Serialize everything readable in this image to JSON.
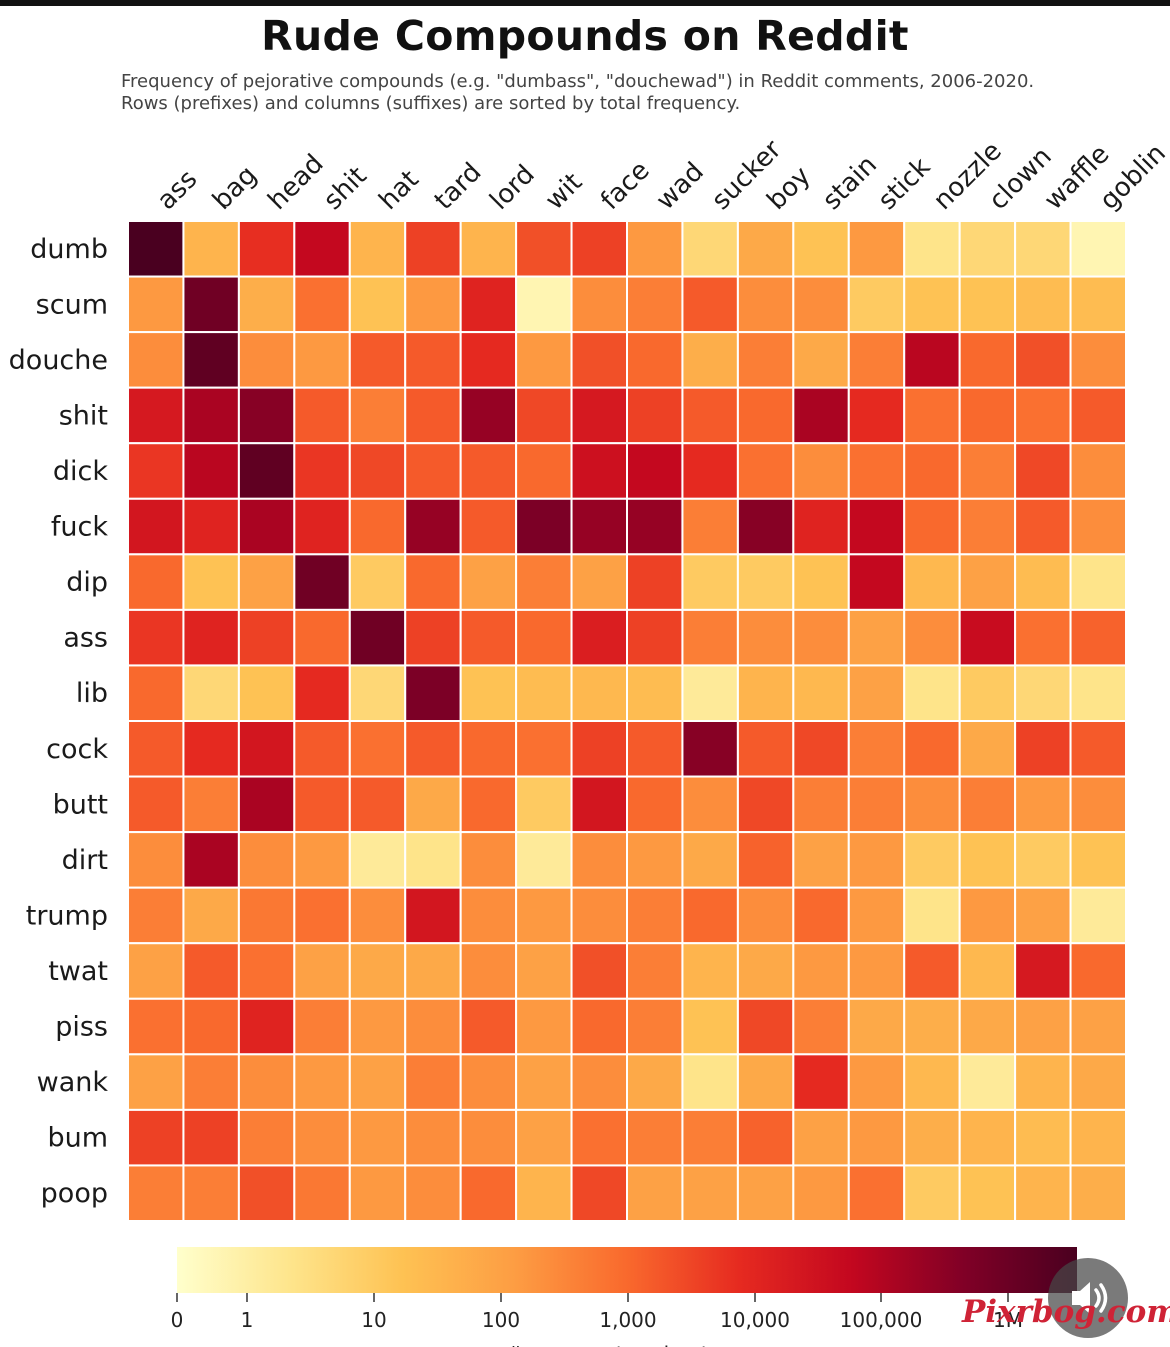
{
  "chart_data": {
    "type": "heatmap",
    "title": "Rude Compounds on Reddit",
    "subtitle": [
      "Frequency of pejorative compounds (e.g. \"dumbass\", \"douchewad\") in Reddit comments, 2006-2020.",
      "Rows (prefixes) and columns (suffixes) are sorted by total frequency."
    ],
    "columns": [
      "ass",
      "bag",
      "head",
      "shit",
      "hat",
      "tard",
      "lord",
      "wit",
      "face",
      "wad",
      "sucker",
      "boy",
      "stain",
      "stick",
      "nozzle",
      "clown",
      "waffle",
      "goblin"
    ],
    "rows": [
      "dumb",
      "scum",
      "douche",
      "shit",
      "dick",
      "fuck",
      "dip",
      "ass",
      "lib",
      "cock",
      "butt",
      "dirt",
      "trump",
      "twat",
      "piss",
      "wank",
      "bum",
      "poop"
    ],
    "values": [
      [
        1000000,
        60,
        5000,
        30000,
        60,
        3000,
        60,
        2000,
        3000,
        200,
        10,
        100,
        30,
        200,
        5,
        10,
        10,
        1
      ],
      [
        200,
        300000,
        80,
        800,
        30,
        200,
        8000,
        1,
        300,
        500,
        1500,
        300,
        300,
        20,
        30,
        30,
        40,
        40
      ],
      [
        300,
        500000,
        300,
        200,
        1500,
        1500,
        6000,
        200,
        2000,
        1000,
        80,
        500,
        100,
        500,
        40000,
        1000,
        2000,
        300
      ],
      [
        13000,
        60000,
        150000,
        1500,
        500,
        1500,
        100000,
        2500,
        13000,
        3000,
        1500,
        1000,
        60000,
        6000,
        800,
        1000,
        800,
        1500
      ],
      [
        4000,
        40000,
        500000,
        4000,
        2500,
        1500,
        1500,
        1000,
        20000,
        30000,
        6000,
        800,
        300,
        800,
        1000,
        500,
        2500,
        300
      ],
      [
        15000,
        8000,
        60000,
        8000,
        1000,
        100000,
        1500,
        200000,
        100000,
        100000,
        500,
        150000,
        8000,
        30000,
        1000,
        500,
        1500,
        300
      ],
      [
        1000,
        30,
        150,
        300000,
        20,
        1000,
        150,
        500,
        150,
        3000,
        20,
        20,
        30,
        30000,
        50,
        150,
        40,
        5
      ],
      [
        4000,
        8000,
        3000,
        1000,
        300000,
        3000,
        1500,
        1000,
        10000,
        3000,
        500,
        300,
        300,
        150,
        300,
        25000,
        800,
        1200
      ],
      [
        1000,
        10,
        30,
        6000,
        10,
        200000,
        30,
        40,
        50,
        40,
        3,
        60,
        50,
        150,
        5,
        20,
        10,
        5
      ],
      [
        1500,
        6000,
        15000,
        1500,
        800,
        1500,
        1000,
        800,
        3000,
        1500,
        150000,
        1500,
        2500,
        500,
        1000,
        100,
        3000,
        1500
      ],
      [
        1500,
        500,
        60000,
        1500,
        1500,
        100,
        1000,
        20,
        15000,
        1000,
        300,
        2500,
        500,
        500,
        300,
        500,
        200,
        300
      ],
      [
        300,
        60000,
        300,
        200,
        3,
        5,
        300,
        3,
        300,
        200,
        100,
        1200,
        150,
        200,
        20,
        30,
        20,
        30
      ],
      [
        500,
        100,
        600,
        800,
        300,
        15000,
        300,
        200,
        300,
        500,
        1000,
        300,
        1000,
        200,
        5,
        200,
        150,
        3
      ],
      [
        150,
        1500,
        800,
        150,
        100,
        100,
        300,
        150,
        2000,
        500,
        60,
        100,
        200,
        200,
        1500,
        50,
        13000,
        1000
      ],
      [
        800,
        1000,
        8000,
        500,
        200,
        300,
        1500,
        200,
        1000,
        500,
        30,
        2500,
        500,
        100,
        80,
        100,
        150,
        150
      ],
      [
        150,
        500,
        300,
        200,
        150,
        500,
        300,
        150,
        300,
        100,
        5,
        100,
        6000,
        200,
        50,
        3,
        60,
        100
      ],
      [
        3000,
        3000,
        500,
        300,
        200,
        300,
        300,
        150,
        800,
        500,
        500,
        1200,
        150,
        200,
        80,
        60,
        40,
        60
      ],
      [
        500,
        500,
        2000,
        600,
        200,
        300,
        1000,
        60,
        2500,
        150,
        150,
        150,
        200,
        800,
        20,
        30,
        60,
        80
      ]
    ],
    "colorbar": {
      "scale": "log",
      "ticks": [
        "0",
        "1",
        "10",
        "100",
        "1,000",
        "10,000",
        "100,000",
        "1M"
      ],
      "label": "# comments using term"
    },
    "colors": [
      "#ffffcc",
      "#fee58c",
      "#fec253",
      "#fd9d43",
      "#f9692d",
      "#e62a20",
      "#c3071f",
      "#800026",
      "#4a0020"
    ]
  },
  "watermark": "Pixrbog.com",
  "sound_button": {
    "icon": "speaker-icon"
  }
}
